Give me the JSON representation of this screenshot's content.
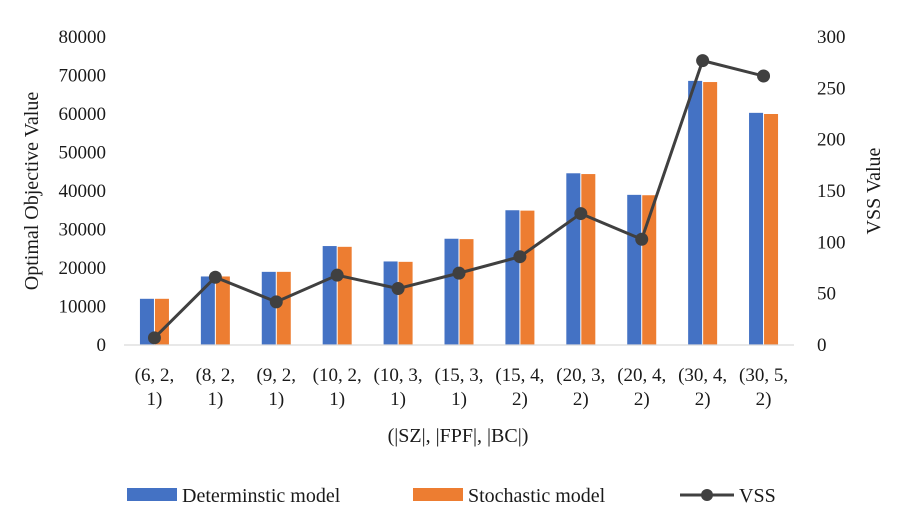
{
  "chart_data": {
    "type": "bar",
    "categories": [
      [
        "(6, 2,",
        "1)"
      ],
      [
        "(8, 2,",
        "1)"
      ],
      [
        "(9, 2,",
        "1)"
      ],
      [
        "(10, 2,",
        "1)"
      ],
      [
        "(10, 3,",
        "1)"
      ],
      [
        "(15, 3,",
        "1)"
      ],
      [
        "(15, 4,",
        "2)"
      ],
      [
        "(20, 3,",
        "2)"
      ],
      [
        "(20, 4,",
        "2)"
      ],
      [
        "(30, 4,",
        "2)"
      ],
      [
        "(30, 5,",
        "2)"
      ]
    ],
    "series": [
      {
        "name": "Determinstic model",
        "type": "bar",
        "axis": "left",
        "color": "#4472C4",
        "values": [
          12000,
          17800,
          19000,
          25700,
          21700,
          27600,
          35000,
          44600,
          39000,
          68600,
          60300
        ]
      },
      {
        "name": "Stochastic model",
        "type": "bar",
        "axis": "left",
        "color": "#ED7D31",
        "values": [
          12000,
          17800,
          19000,
          25500,
          21600,
          27500,
          34900,
          44400,
          38900,
          68300,
          60000
        ]
      },
      {
        "name": "VSS",
        "type": "line",
        "axis": "right",
        "color": "#404040",
        "values": [
          7,
          66,
          42,
          68,
          55,
          70,
          86,
          128,
          103,
          277,
          262
        ]
      }
    ],
    "xlabel": "(|SZ|, |FPF|, |BC|)",
    "ylabel": "Optimal Objective Value",
    "y2label": "VSS Value",
    "ylim": [
      0,
      80000
    ],
    "y2lim": [
      0,
      300
    ],
    "yticks": [
      "0",
      "10000",
      "20000",
      "30000",
      "40000",
      "50000",
      "60000",
      "70000",
      "80000"
    ],
    "y2ticks": [
      "0",
      "50",
      "100",
      "150",
      "200",
      "250",
      "300"
    ],
    "legend_position": "bottom",
    "grid": false
  }
}
